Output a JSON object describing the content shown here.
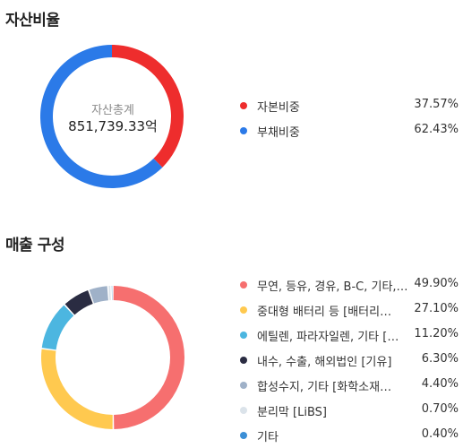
{
  "colors": {
    "equity": "#ee2d2d",
    "debt": "#2b7ae8",
    "seg1": "#f66f6f",
    "seg2": "#ffc94f",
    "seg3": "#4cb6e0",
    "seg4": "#2a2c42",
    "seg5": "#9fb1c8",
    "seg6": "#dbe3ea",
    "seg7": "#3c8fd6"
  },
  "chart_data": [
    {
      "type": "pie",
      "title": "자산비율",
      "center": {
        "caption": "자산총계",
        "value": "851,739.33억"
      },
      "categories": [
        "자본비중",
        "부채비중"
      ],
      "values": [
        37.57,
        62.43
      ],
      "value_labels": [
        "37.57%",
        "62.43%"
      ],
      "colors": [
        "#ee2d2d",
        "#2b7ae8"
      ],
      "legend": "right"
    },
    {
      "type": "pie",
      "title": "매출 구성",
      "categories": [
        "무연, 등유, 경유, B-C, 기타,…",
        "중대형 배터리 등 [배터리…",
        "에틸렌, 파라자일렌, 기타 […",
        "내수, 수출, 해외법인 [기유]",
        "합성수지, 기타 [화학소재…",
        "분리막 [LiBS]",
        "기타"
      ],
      "values": [
        49.9,
        27.1,
        11.2,
        6.3,
        4.4,
        0.7,
        0.4
      ],
      "value_labels": [
        "49.90%",
        "27.10%",
        "11.20%",
        "6.30%",
        "4.40%",
        "0.70%",
        "0.40%"
      ],
      "colors": [
        "#f66f6f",
        "#ffc94f",
        "#4cb6e0",
        "#2a2c42",
        "#9fb1c8",
        "#dbe3ea",
        "#3c8fd6"
      ],
      "legend": "right"
    }
  ]
}
